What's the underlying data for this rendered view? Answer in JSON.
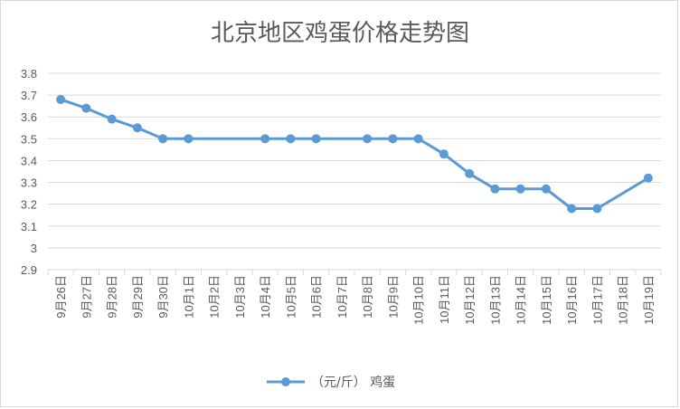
{
  "colors": {
    "series": "#5b9bd5",
    "grid": "#d9d9d9",
    "text": "#595959",
    "axis": "#d9d9d9"
  },
  "chart_data": {
    "type": "line",
    "title": "北京地区鸡蛋价格走势图",
    "xlabel": "",
    "ylabel": "",
    "ylim": [
      2.9,
      3.8
    ],
    "ytick_step": 0.1,
    "yticks": [
      "3.8",
      "3.7",
      "3.6",
      "3.5",
      "3.4",
      "3.3",
      "3.2",
      "3.1",
      "3",
      "2.9"
    ],
    "grid": true,
    "legend_position": "bottom",
    "categories": [
      "9月26日",
      "9月27日",
      "9月28日",
      "9月29日",
      "9月30日",
      "10月1日",
      "10月2日",
      "10月3日",
      "10月4日",
      "10月5日",
      "10月6日",
      "10月7日",
      "10月8日",
      "10月9日",
      "10月10日",
      "10月11日",
      "10月12日",
      "10月13日",
      "10月14日",
      "10月15日",
      "10月16日",
      "10月17日",
      "10月18日",
      "10月19日"
    ],
    "series": [
      {
        "name": "（元/斤） 鸡蛋",
        "values": [
          3.68,
          3.64,
          3.59,
          3.55,
          3.5,
          3.5,
          null,
          null,
          3.5,
          3.5,
          3.5,
          null,
          3.5,
          3.5,
          3.5,
          3.43,
          3.34,
          3.27,
          3.27,
          3.27,
          3.18,
          3.18,
          null,
          3.32
        ]
      }
    ]
  }
}
